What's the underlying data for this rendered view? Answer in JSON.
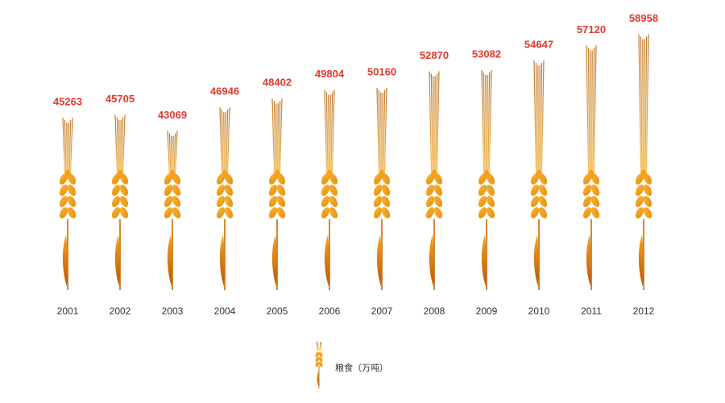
{
  "chart_data": {
    "type": "bar",
    "categories": [
      "2001",
      "2002",
      "2003",
      "2004",
      "2005",
      "2006",
      "2007",
      "2008",
      "2009",
      "2010",
      "2011",
      "2012"
    ],
    "series": [
      {
        "name": "粮食（万吨）",
        "values": [
          45263,
          45705,
          43069,
          46946,
          48402,
          49804,
          50160,
          52870,
          53082,
          54647,
          57120,
          58958
        ]
      }
    ],
    "data_labels": true,
    "grid": false,
    "legend_position": "bottom-center",
    "bar_glyph": "wheat-stalk",
    "colors": {
      "value_label": "#e0392b",
      "grain": "#f2a11d",
      "grain_dark": "#c8650a",
      "stem": "#d47a18",
      "awn": "#b9781f"
    }
  }
}
